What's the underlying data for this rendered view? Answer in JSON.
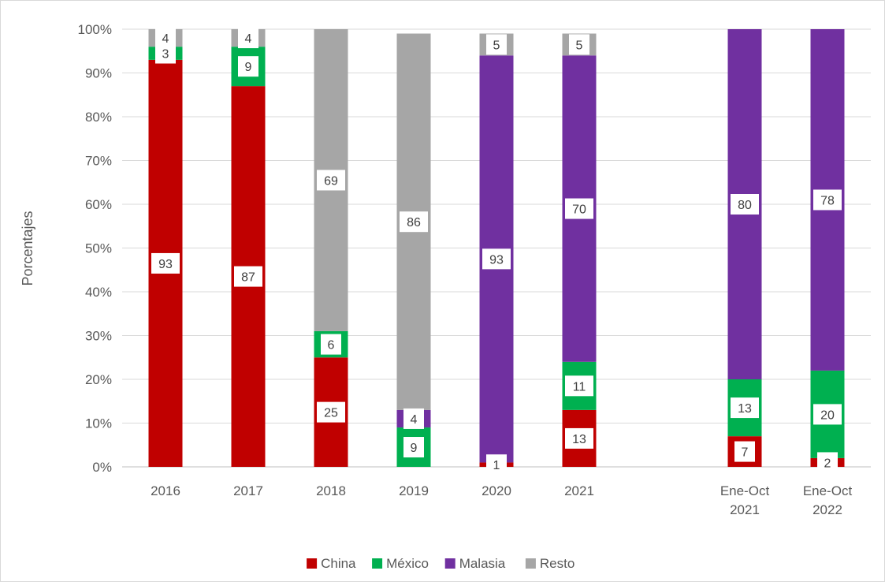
{
  "chart_data": {
    "type": "bar",
    "stacked": true,
    "categories": [
      [
        "2016"
      ],
      [
        "2017"
      ],
      [
        "2018"
      ],
      [
        "2019"
      ],
      [
        "2020"
      ],
      [
        "2021"
      ],
      [
        "Ene-Oct",
        "2021"
      ],
      [
        "Ene-Oct",
        "2022"
      ]
    ],
    "ylabel": "Porcentajes",
    "ylim": [
      0,
      100
    ],
    "yticks": [
      "0%",
      "10%",
      "20%",
      "30%",
      "40%",
      "50%",
      "60%",
      "70%",
      "80%",
      "90%",
      "100%"
    ],
    "grid": true,
    "legend_position": "bottom",
    "series": [
      {
        "name": "China",
        "color": "#C00000",
        "values": [
          93,
          87,
          25,
          0,
          1,
          13,
          7,
          2
        ]
      },
      {
        "name": "México",
        "color": "#00B050",
        "values": [
          3,
          9,
          6,
          9,
          0,
          11,
          13,
          20
        ]
      },
      {
        "name": "Malasia",
        "color": "#7030A0",
        "values": [
          0,
          0,
          0,
          4,
          93,
          70,
          80,
          78
        ]
      },
      {
        "name": "Resto",
        "color": "#A6A6A6",
        "values": [
          4,
          4,
          69,
          86,
          5,
          5,
          0,
          0
        ]
      }
    ],
    "data_labels": [
      [
        "93",
        "3",
        null,
        "4"
      ],
      [
        "87",
        "9",
        null,
        "4"
      ],
      [
        "25",
        "6",
        null,
        "69"
      ],
      [
        null,
        "9",
        "4",
        "86"
      ],
      [
        "1",
        null,
        "93",
        "5"
      ],
      [
        "13",
        "11",
        "70",
        "5"
      ],
      [
        "7",
        "13",
        "80",
        null
      ],
      [
        "2",
        "20",
        "78",
        null
      ]
    ]
  }
}
